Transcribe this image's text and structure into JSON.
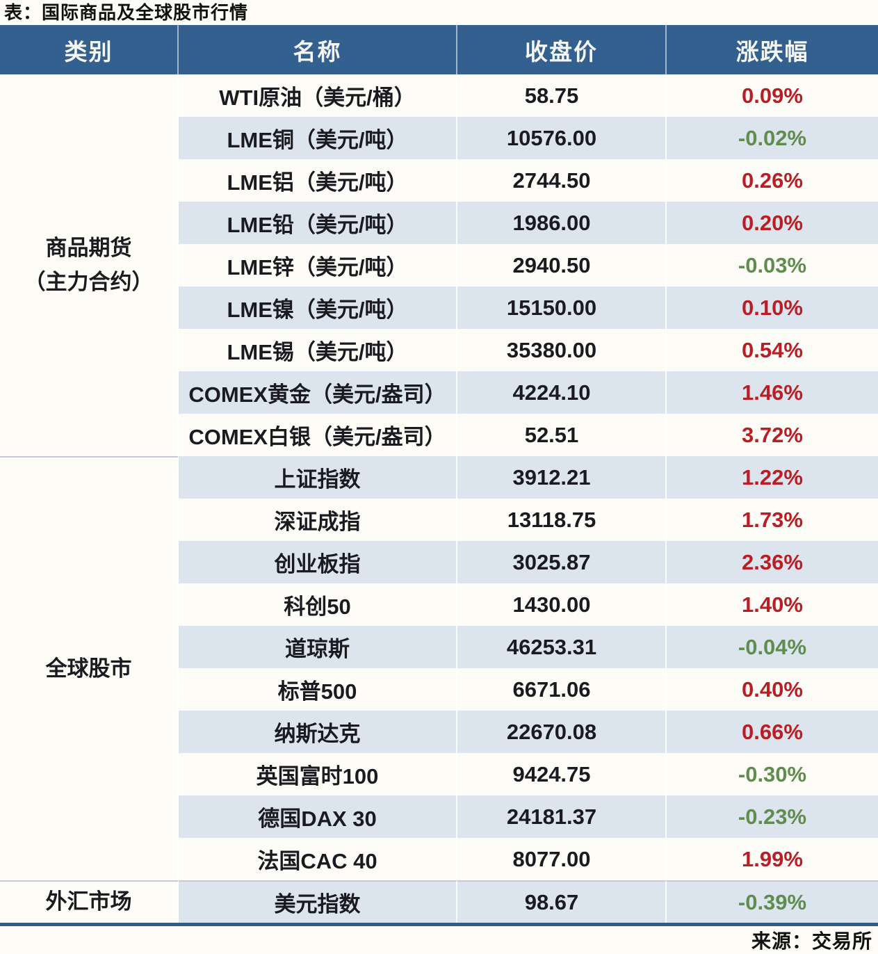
{
  "title": "表：国际商品及全球股市行情",
  "source": "来源：交易所",
  "colors": {
    "header_bg": "#33608f",
    "stripe_bg": "#dce4ee",
    "row_bg": "#fdfcf7",
    "up_red": "#b81e24",
    "down_green": "#5e8d4e",
    "text_dark": "#1a1a20",
    "section_line": "#c4cad3",
    "bottom_border": "#2e5c8d"
  },
  "chart_data": {
    "type": "table",
    "title": "表：国际商品及全球股市行情",
    "columns": [
      "类别",
      "名称",
      "收盘价",
      "涨跌幅"
    ],
    "sections": [
      {
        "category": "商品期货\n（主力合约）",
        "rows": [
          {
            "name": "WTI原油（美元/桶）",
            "close": "58.75",
            "change": "0.09%"
          },
          {
            "name": "LME铜（美元/吨）",
            "close": "10576.00",
            "change": "-0.02%"
          },
          {
            "name": "LME铝（美元/吨）",
            "close": "2744.50",
            "change": "0.26%"
          },
          {
            "name": "LME铅（美元/吨）",
            "close": "1986.00",
            "change": "0.20%"
          },
          {
            "name": "LME锌（美元/吨）",
            "close": "2940.50",
            "change": "-0.03%"
          },
          {
            "name": "LME镍（美元/吨）",
            "close": "15150.00",
            "change": "0.10%"
          },
          {
            "name": "LME锡（美元/吨）",
            "close": "35380.00",
            "change": "0.54%"
          },
          {
            "name": "COMEX黄金（美元/盎司）",
            "close": "4224.10",
            "change": "1.46%"
          },
          {
            "name": "COMEX白银（美元/盎司）",
            "close": "52.51",
            "change": "3.72%"
          }
        ]
      },
      {
        "category": "全球股市",
        "rows": [
          {
            "name": "上证指数",
            "close": "3912.21",
            "change": "1.22%"
          },
          {
            "name": "深证成指",
            "close": "13118.75",
            "change": "1.73%"
          },
          {
            "name": "创业板指",
            "close": "3025.87",
            "change": "2.36%"
          },
          {
            "name": "科创50",
            "close": "1430.00",
            "change": "1.40%"
          },
          {
            "name": "道琼斯",
            "close": "46253.31",
            "change": "-0.04%"
          },
          {
            "name": "标普500",
            "close": "6671.06",
            "change": "0.40%"
          },
          {
            "name": "纳斯达克",
            "close": "22670.08",
            "change": "0.66%"
          },
          {
            "name": "英国富时100",
            "close": "9424.75",
            "change": "-0.30%"
          },
          {
            "name": "德国DAX 30",
            "close": "24181.37",
            "change": "-0.23%"
          },
          {
            "name": "法国CAC 40",
            "close": "8077.00",
            "change": "1.99%"
          }
        ]
      },
      {
        "category": "外汇市场",
        "rows": [
          {
            "name": "美元指数",
            "close": "98.67",
            "change": "-0.39%"
          }
        ]
      }
    ]
  }
}
